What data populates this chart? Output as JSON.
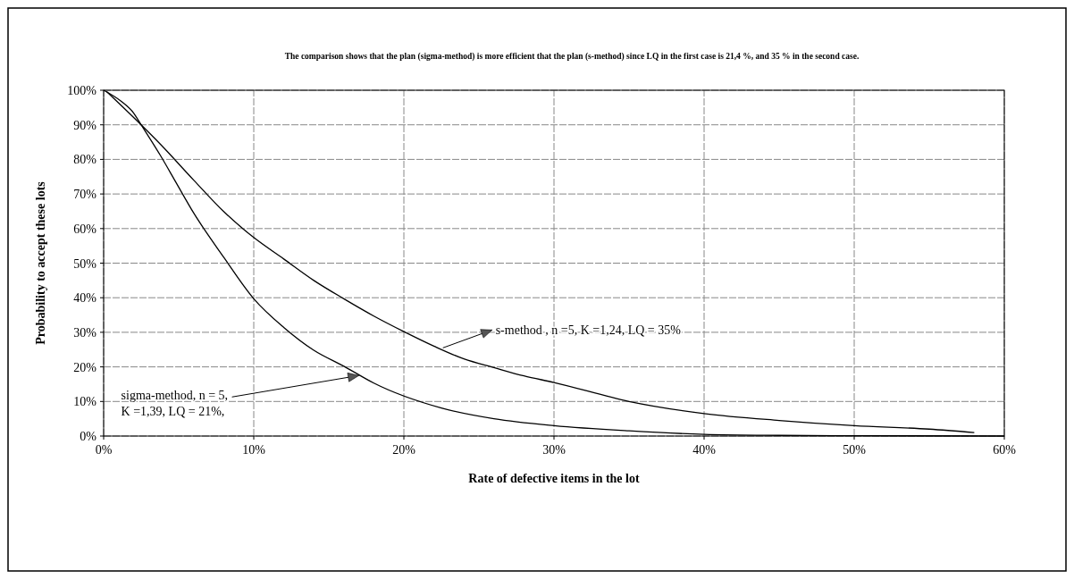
{
  "chart_data": {
    "type": "line",
    "title": "The comparison shows that the plan (sigma-method) is more efficient that the plan (s-method) since LQ in the first case is 21,4 %, and 35 % in the second case.",
    "xlabel": "Rate of defective items in the lot",
    "ylabel": "Probability to accept these lots",
    "series": [
      {
        "color": "#000000",
        "x": [
          0,
          1.2,
          2,
          2.5,
          3.8,
          4.8,
          6,
          8,
          10,
          12,
          14,
          16,
          18,
          22.5,
          26,
          30,
          35,
          40,
          45,
          50,
          60
        ],
        "values": [
          100,
          96.7,
          93.4,
          90,
          81,
          73.5,
          64.5,
          51.7,
          39.7,
          31.4,
          24.8,
          20.2,
          15.3,
          8.1,
          5,
          3,
          1.5,
          0.5,
          0.2,
          0.1,
          0
        ]
      },
      {
        "color": "#000000",
        "x": [
          0.2,
          2,
          3.8,
          6,
          8,
          10,
          12,
          14,
          16,
          18,
          20,
          22,
          24,
          26,
          28,
          30,
          35,
          40,
          45,
          50,
          55,
          58
        ],
        "values": [
          99.6,
          92.1,
          84.3,
          74,
          64.9,
          57.4,
          51.2,
          45,
          39.7,
          34.7,
          30.2,
          26,
          22.3,
          19.8,
          17.4,
          15.5,
          10,
          6.5,
          4.5,
          3,
          2,
          1
        ]
      }
    ],
    "annotations": [
      {
        "text": "sigma-method, n = 5,\nK =1,39, LQ = 21%,",
        "x": 17,
        "y": 17.5
      },
      {
        "text": "s-method , n =5,  K =1,24, LQ = 35%",
        "x": 22.6,
        "y": 25.5
      }
    ],
    "xlim": [
      0,
      60
    ],
    "xticks": [
      {
        "value": 0,
        "label": "0%"
      },
      {
        "value": 10,
        "label": "10%"
      },
      {
        "value": 20,
        "label": "20%"
      },
      {
        "value": 30,
        "label": "30%"
      },
      {
        "value": 40,
        "label": "40%"
      },
      {
        "value": 50,
        "label": "50%"
      },
      {
        "value": 60,
        "label": "60%"
      }
    ],
    "ylim": [
      0,
      100
    ],
    "yticks": [
      {
        "value": 0,
        "label": "0%"
      },
      {
        "value": 10,
        "label": "10%"
      },
      {
        "value": 20,
        "label": "20%"
      },
      {
        "value": 30,
        "label": "30%"
      },
      {
        "value": 40,
        "label": "40%"
      },
      {
        "value": 50,
        "label": "50%"
      },
      {
        "value": 60,
        "label": "60%"
      },
      {
        "value": 70,
        "label": "70%"
      },
      {
        "value": 80,
        "label": "80%"
      },
      {
        "value": 90,
        "label": "90%"
      },
      {
        "value": 100,
        "label": "100%"
      }
    ],
    "grid": true,
    "marker": "none",
    "line_style": "solid",
    "legend": false
  }
}
